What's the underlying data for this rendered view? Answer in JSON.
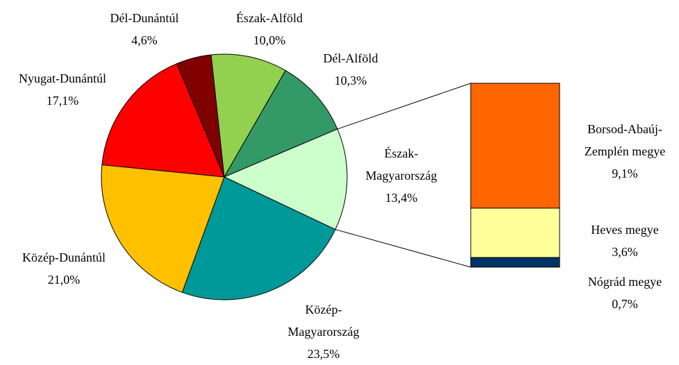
{
  "chart_data": {
    "type": "pie-of-bar",
    "categories": [
      "Dél-Dunántúl",
      "Észak-Alföld",
      "Dél-Alföld",
      "Észak-Magyarország",
      "Közép-Magyarország",
      "Közép-Dunántúl",
      "Nyugat-Dunántúl"
    ],
    "values": [
      4.6,
      10.0,
      10.3,
      13.4,
      23.5,
      21.0,
      17.1
    ],
    "value_labels": [
      "4,6%",
      "10,0%",
      "10,3%",
      "13,4%",
      "23,5%",
      "21,0%",
      "17,1%"
    ],
    "colors": [
      "#800000",
      "#92d050",
      "#339966",
      "#ccffcc",
      "#009999",
      "#ffc000",
      "#ff0000"
    ],
    "breakdown": {
      "of": 3,
      "categories": [
        "Borsod-Abaúj-Zemplén megye",
        "Heves megye",
        "Nógrád megye"
      ],
      "values": [
        9.1,
        3.6,
        0.7
      ],
      "value_labels": [
        "9,1%",
        "3,6%",
        "0,7%"
      ],
      "colors": [
        "#ff6600",
        "#ffff99",
        "#003366"
      ]
    }
  }
}
